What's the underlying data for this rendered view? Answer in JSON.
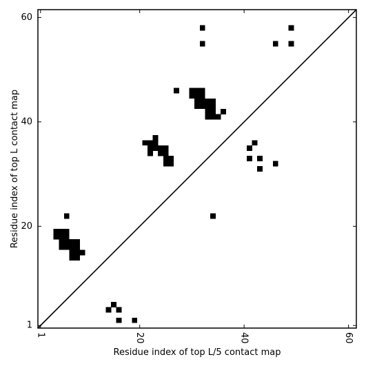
{
  "chart_data": {
    "type": "heatmap",
    "xlabel": "Residue index of top L/5 contact map",
    "ylabel": "Residue index of top L contact map",
    "xlim": [
      0.5,
      61.5
    ],
    "ylim": [
      0.5,
      61.5
    ],
    "x_ticks": [
      1,
      20,
      40,
      60
    ],
    "y_ticks": [
      1,
      20,
      40,
      60
    ],
    "x_tick_rotation": -90,
    "grid": false,
    "diagonal": true,
    "cell_color": "#000000",
    "line_color": "#000000",
    "upper_cells": [
      [
        32,
        58
      ],
      [
        49,
        58
      ],
      [
        32,
        55
      ],
      [
        46,
        55
      ],
      [
        49,
        55
      ],
      [
        27,
        46
      ],
      [
        30,
        46
      ],
      [
        31,
        46
      ],
      [
        32,
        46
      ],
      [
        30,
        45
      ],
      [
        31,
        45
      ],
      [
        32,
        45
      ],
      [
        31,
        44
      ],
      [
        32,
        44
      ],
      [
        33,
        44
      ],
      [
        34,
        44
      ],
      [
        31,
        43
      ],
      [
        32,
        43
      ],
      [
        33,
        43
      ],
      [
        34,
        43
      ],
      [
        33,
        42
      ],
      [
        34,
        42
      ],
      [
        36,
        42
      ],
      [
        33,
        41
      ],
      [
        34,
        41
      ],
      [
        35,
        41
      ],
      [
        21,
        36
      ],
      [
        22,
        36
      ],
      [
        23,
        36
      ],
      [
        23,
        37
      ],
      [
        22,
        35
      ],
      [
        23,
        35
      ],
      [
        24,
        35
      ],
      [
        25,
        35
      ],
      [
        22,
        34
      ],
      [
        24,
        34
      ],
      [
        25,
        34
      ],
      [
        25,
        33
      ],
      [
        26,
        33
      ],
      [
        25,
        32
      ],
      [
        26,
        32
      ]
    ],
    "lower_cells": [
      [
        42,
        36
      ],
      [
        41,
        35
      ],
      [
        41,
        33
      ],
      [
        43,
        33
      ],
      [
        46,
        32
      ],
      [
        43,
        31
      ],
      [
        34,
        22
      ],
      [
        6,
        22
      ],
      [
        4,
        19
      ],
      [
        5,
        19
      ],
      [
        6,
        19
      ],
      [
        4,
        18
      ],
      [
        5,
        18
      ],
      [
        6,
        18
      ],
      [
        5,
        17
      ],
      [
        6,
        17
      ],
      [
        7,
        17
      ],
      [
        8,
        17
      ],
      [
        5,
        16
      ],
      [
        6,
        16
      ],
      [
        7,
        16
      ],
      [
        8,
        16
      ],
      [
        7,
        15
      ],
      [
        8,
        15
      ],
      [
        9,
        15
      ],
      [
        7,
        14
      ],
      [
        8,
        14
      ],
      [
        15,
        5
      ],
      [
        14,
        4
      ],
      [
        16,
        4
      ],
      [
        16,
        2
      ],
      [
        19,
        2
      ]
    ]
  }
}
